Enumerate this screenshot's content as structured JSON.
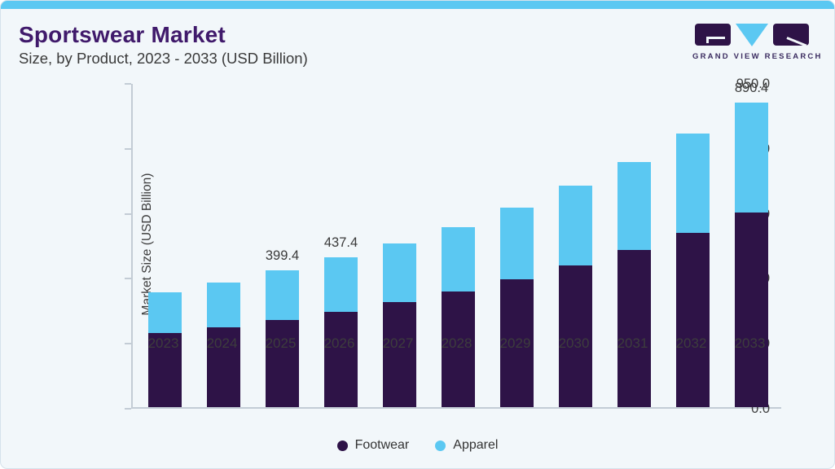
{
  "header": {
    "title": "Sportswear Market",
    "subtitle": "Size, by Product, 2023 - 2033 (USD Billion)",
    "brand_name": "GRAND VIEW RESEARCH"
  },
  "colors": {
    "accent_strip": "#5bc8f2",
    "footwear": "#2e1347",
    "apparel": "#5bc8f2",
    "title_purple": "#401a6b",
    "axis_text": "#3d3d3d",
    "card_background": "#f2f7fa"
  },
  "chart_data": {
    "type": "bar",
    "stacked": true,
    "title": "Sportswear Market Size, by Product, 2023 - 2033 (USD Billion)",
    "xlabel": "",
    "ylabel": "Market Size (USD Billion)",
    "ylim": [
      0,
      950
    ],
    "yticks": [
      0,
      190,
      380,
      570,
      760,
      950
    ],
    "ytick_labels": [
      "0.0",
      "190.0",
      "380.0",
      "570.0",
      "760.0",
      "950.0"
    ],
    "grid": false,
    "legend_position": "bottom",
    "categories": [
      "2023",
      "2024",
      "2025",
      "2026",
      "2027",
      "2028",
      "2029",
      "2030",
      "2031",
      "2032",
      "2033"
    ],
    "series": [
      {
        "name": "Footwear",
        "color": "#2e1347",
        "values": [
          215.7,
          233.1,
          254.4,
          278.7,
          307.0,
          338.5,
          373.9,
          413.3,
          458.9,
          510.2,
          569.9
        ]
      },
      {
        "name": "Apparel",
        "color": "#5bc8f2",
        "values": [
          119.7,
          131.3,
          145.0,
          158.7,
          172.4,
          188.9,
          209.5,
          233.8,
          258.4,
          288.8,
          320.5
        ]
      }
    ],
    "totals": [
      335.4,
      364.4,
      399.4,
      437.4,
      479.4,
      527.4,
      583.4,
      647.1,
      717.3,
      799.0,
      890.4
    ],
    "bar_labels": [
      "",
      "",
      "399.4",
      "437.4",
      "",
      "",
      "",
      "",
      "",
      "",
      "890.4"
    ]
  }
}
